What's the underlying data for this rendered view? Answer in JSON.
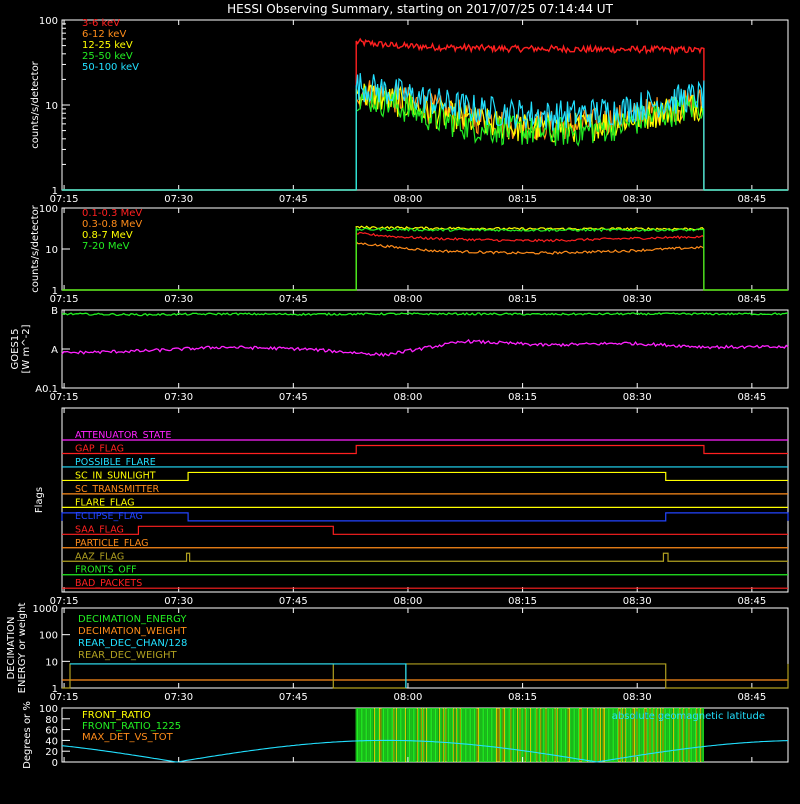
{
  "title": "HESSI Observing Summary, starting on 2017/07/25 07:14:44 UT",
  "time_ticks": [
    "07:15",
    "07:30",
    "07:45",
    "08:00",
    "08:15",
    "08:30",
    "08:45"
  ],
  "colors": {
    "background": "#000000",
    "axes": "#ffffff",
    "red": "#ff2020",
    "orange": "#ff8c1a",
    "yellow": "#ffff00",
    "green": "#22ee22",
    "cyan": "#22e0ff",
    "magenta": "#ff22ff",
    "blue": "#2244ff",
    "olive": "#b0a020"
  },
  "chart_data": [
    {
      "id": "hxr",
      "type": "line",
      "ylabel": "counts/s/detector",
      "yscale": "log",
      "ylim": [
        1,
        100
      ],
      "ytick_labels": [
        "1",
        "10",
        "100"
      ],
      "xlim_minutes": [
        0,
        95
      ],
      "series": [
        {
          "name": "3-6 keV",
          "color": "#ff2020",
          "start": 38.5,
          "end": 84,
          "y": [
            55,
            50,
            48,
            47,
            46,
            46,
            45,
            45,
            45,
            44
          ]
        },
        {
          "name": "6-12 keV",
          "color": "#ff8c1a",
          "start": 38.5,
          "end": 84,
          "y": [
            15,
            12,
            9,
            7,
            6,
            5.8,
            6,
            7,
            9,
            11
          ]
        },
        {
          "name": "12-25 keV",
          "color": "#ffff00",
          "start": 38.5,
          "end": 84,
          "y": [
            14,
            11,
            8,
            6.5,
            5.5,
            5.2,
            5.6,
            6.8,
            8.5,
            10
          ]
        },
        {
          "name": "25-50 keV",
          "color": "#22ee22",
          "start": 38.5,
          "end": 84,
          "y": [
            13,
            10,
            7,
            5.5,
            5,
            4.8,
            5,
            6,
            8,
            10
          ]
        },
        {
          "name": "50-100 keV",
          "color": "#22e0ff",
          "start": 38.5,
          "end": 84,
          "y": [
            17,
            14,
            11,
            9,
            8,
            7.5,
            8,
            9,
            11,
            13
          ]
        }
      ]
    },
    {
      "id": "gamma",
      "type": "line",
      "ylabel": "counts/s/detector",
      "yscale": "log",
      "ylim": [
        1,
        100
      ],
      "ytick_labels": [
        "1",
        "10",
        "100"
      ],
      "xlim_minutes": [
        0,
        95
      ],
      "series": [
        {
          "name": "0.1-0.3 MeV",
          "color": "#ff2020",
          "start": 38.5,
          "end": 84,
          "y": [
            24,
            20,
            18,
            17,
            16,
            16,
            17,
            18,
            19,
            20
          ]
        },
        {
          "name": "0.3-0.8 MeV",
          "color": "#ff8c1a",
          "start": 38.5,
          "end": 84,
          "y": [
            14,
            11,
            9,
            8.5,
            8,
            8,
            8.5,
            9,
            10,
            11
          ]
        },
        {
          "name": "0.8-7 MeV",
          "color": "#ffff00",
          "start": 38.5,
          "end": 84,
          "y": [
            34,
            33,
            32,
            32,
            31,
            31,
            31,
            31,
            31,
            31
          ]
        },
        {
          "name": "7-20 MeV",
          "color": "#22ee22",
          "start": 38.5,
          "end": 84,
          "y": [
            30,
            30,
            29,
            29,
            29,
            29,
            29,
            29,
            29,
            29
          ]
        }
      ]
    },
    {
      "id": "goes",
      "type": "line",
      "ylabel": "GOES15",
      "ylabel2": "[W m^-2]",
      "ytick_labels": [
        "A0.1",
        "A",
        "B"
      ],
      "xlim_minutes": [
        0,
        95
      ],
      "series": [
        {
          "color": "#22ee22",
          "start": 0,
          "end": 95,
          "y": [
            0.9,
            0.88,
            0.9,
            0.89,
            0.9,
            0.9,
            0.89,
            0.9,
            0.9,
            0.9
          ]
        },
        {
          "color": "#ff22ff",
          "start": 0,
          "end": 95,
          "y": [
            -0.1,
            -0.05,
            0.05,
            0.0,
            -0.15,
            0.2,
            0.1,
            0.15,
            0.05,
            0.05
          ]
        }
      ]
    },
    {
      "id": "flags",
      "type": "line",
      "ylabel": "Flags",
      "xlim_minutes": [
        0,
        95
      ],
      "flags": [
        {
          "name": "ATTENUATOR_STATE",
          "color": "#ff22ff",
          "segments": []
        },
        {
          "name": "GAP_FLAG",
          "color": "#ff2020",
          "segments": [
            [
              38.5,
              84
            ]
          ]
        },
        {
          "name": "POSSIBLE_FLARE",
          "color": "#22e0ff",
          "segments": []
        },
        {
          "name": "SC_IN_SUNLIGHT",
          "color": "#ffff00",
          "segments": [
            [
              16.5,
              79
            ]
          ]
        },
        {
          "name": "SC_TRANSMITTER",
          "color": "#ff8c1a",
          "segments": []
        },
        {
          "name": "FLARE_FLAG",
          "color": "#ffff00",
          "segments": []
        },
        {
          "name": "ECLIPSE_FLAG",
          "color": "#2244ff",
          "segments": [
            [
              0,
              16.5
            ],
            [
              79,
              95
            ]
          ]
        },
        {
          "name": "SAA_FLAG",
          "color": "#ff2020",
          "segments": [
            [
              10,
              35.5
            ]
          ]
        },
        {
          "name": "PARTICLE_FLAG",
          "color": "#ff8c1a",
          "segments": []
        },
        {
          "name": "AAZ_FLAG",
          "color": "#b0a020",
          "segments": [
            [
              16.3,
              16.7
            ],
            [
              78.7,
              79.3
            ]
          ]
        },
        {
          "name": "FRONTS_OFF",
          "color": "#22ee22",
          "segments": []
        },
        {
          "name": "BAD_PACKETS",
          "color": "#ff2020",
          "segments": []
        }
      ]
    },
    {
      "id": "decimation",
      "type": "line",
      "ylabel": "DECIMATION",
      "ylabel2": "ENERGY or weight",
      "yscale": "log",
      "ylim": [
        1,
        1000
      ],
      "ytick_labels": [
        "1",
        "10",
        "100",
        "1000"
      ],
      "xlim_minutes": [
        0,
        95
      ],
      "series": [
        {
          "name": "DECIMATION_ENERGY",
          "color": "#22ee22",
          "start": 0,
          "end": 95,
          "y": 1.0
        },
        {
          "name": "DECIMATION_WEIGHT",
          "color": "#ff8c1a",
          "start": 0,
          "end": 95,
          "y": 2.0
        },
        {
          "name": "REAR_DEC_CHAN/128",
          "color": "#22e0ff",
          "start": 0,
          "end": 95,
          "y": 1.0
        },
        {
          "name": "REAR_DEC_WEIGHT",
          "color": "#b0a020",
          "start": 0,
          "end": 95,
          "y": 8.0
        }
      ],
      "weight_segments": [
        [
          35.5,
          45
        ],
        [
          79,
          95
        ]
      ]
    },
    {
      "id": "ratio",
      "type": "line",
      "ylabel": "Degrees or %",
      "ylim": [
        0,
        100
      ],
      "ytick_labels": [
        "0",
        "20",
        "40",
        "60",
        "80",
        "100"
      ],
      "xlim_minutes": [
        0,
        95
      ],
      "annotation": "absolute geomagnetic latitude",
      "series": [
        {
          "name": "FRONT_RATIO",
          "color": "#ffff00"
        },
        {
          "name": "FRONT_RATIO_1225",
          "color": "#22ee22"
        },
        {
          "name": "MAX_DET_VS_TOT",
          "color": "#ff8c1a"
        }
      ],
      "latitude": {
        "color": "#22e0ff",
        "amplitude": 40,
        "zeros_minutes": [
          15,
          70
        ]
      },
      "active_span": [
        38.5,
        84
      ]
    }
  ]
}
